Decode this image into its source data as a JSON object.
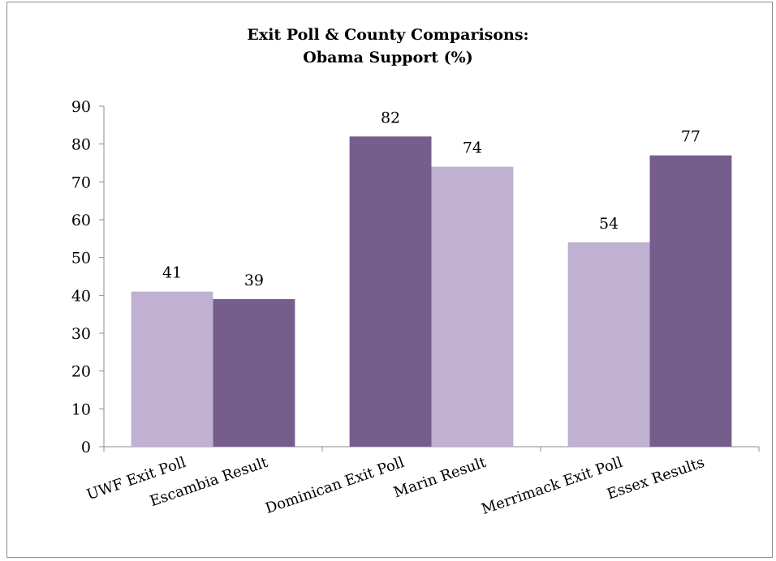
{
  "chart_data": {
    "type": "bar",
    "title": "Exit Poll & County Comparisons:",
    "subtitle": "Obama Support (%)",
    "categories": [
      "UWF Exit Poll",
      "Escambia Result",
      "Dominican Exit Poll",
      "Marin Result",
      "Merrimack Exit Poll",
      "Essex Results"
    ],
    "values": [
      41,
      39,
      82,
      74,
      54,
      77
    ],
    "colors": [
      "#c0b0d2",
      "#765e8c",
      "#765e8c",
      "#c0b0d2",
      "#c0b0d2",
      "#765e8c"
    ],
    "ylim": [
      0,
      90
    ],
    "yticks": [
      0,
      10,
      20,
      30,
      40,
      50,
      60,
      70,
      80,
      90
    ],
    "grid": false,
    "legend": "none",
    "data_labels": true
  }
}
